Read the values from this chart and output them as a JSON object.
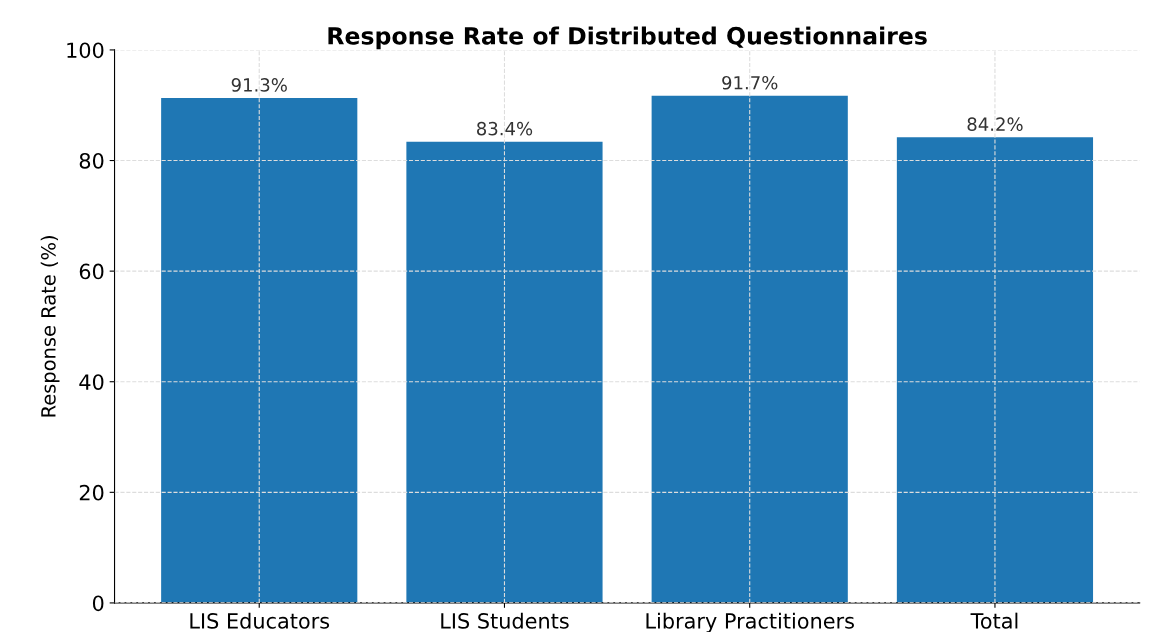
{
  "chart_data": {
    "type": "bar",
    "title": "Response Rate of Distributed Questionnaires",
    "ylabel": "Response Rate (%)",
    "categories": [
      "LIS Educators",
      "LIS Students",
      "Library Practitioners",
      "Total"
    ],
    "values": [
      91.3,
      83.4,
      91.7,
      84.2
    ],
    "color": "#1f77b4",
    "value_labels": [
      "91.3%",
      "83.4%",
      "91.7%",
      "84.2%"
    ],
    "ylim": [
      0,
      100
    ],
    "yticks": [
      0,
      20,
      40,
      60,
      80,
      100
    ],
    "grid": true
  }
}
